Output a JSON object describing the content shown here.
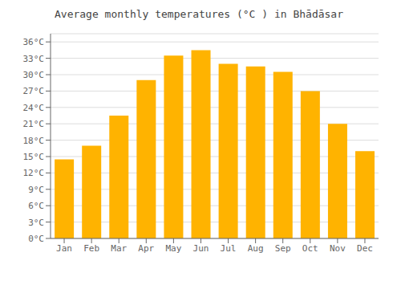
{
  "chart_data": {
    "type": "bar",
    "title": "Average monthly temperatures (°C ) in Bhādāsar",
    "categories": [
      "Jan",
      "Feb",
      "Mar",
      "Apr",
      "May",
      "Jun",
      "Jul",
      "Aug",
      "Sep",
      "Oct",
      "Nov",
      "Dec"
    ],
    "values": [
      14.5,
      17.0,
      22.5,
      29.0,
      33.5,
      34.5,
      32.0,
      31.5,
      30.5,
      27.0,
      21.0,
      16.0
    ],
    "color": "#FFB300",
    "ylim": [
      0,
      37.5
    ],
    "yticks": [
      {
        "value": 0,
        "label": "0°C"
      },
      {
        "value": 3,
        "label": "3°C"
      },
      {
        "value": 6,
        "label": "6°C"
      },
      {
        "value": 9,
        "label": "9°C"
      },
      {
        "value": 12,
        "label": "12°C"
      },
      {
        "value": 15,
        "label": "15°C"
      },
      {
        "value": 18,
        "label": "18°C"
      },
      {
        "value": 21,
        "label": "21°C"
      },
      {
        "value": 24,
        "label": "24°C"
      },
      {
        "value": 27,
        "label": "27°C"
      },
      {
        "value": 30,
        "label": "30°C"
      },
      {
        "value": 33,
        "label": "33°C"
      },
      {
        "value": 36,
        "label": "36°C"
      }
    ],
    "grid": true
  }
}
